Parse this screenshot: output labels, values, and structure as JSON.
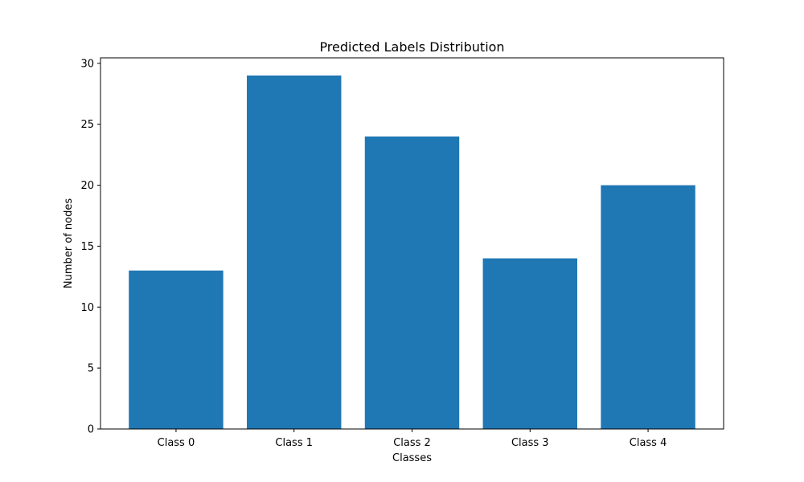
{
  "chart_data": {
    "type": "bar",
    "title": "Predicted Labels Distribution",
    "xlabel": "Classes",
    "ylabel": "Number of nodes",
    "categories": [
      "Class 0",
      "Class 1",
      "Class 2",
      "Class 3",
      "Class 4"
    ],
    "values": [
      13,
      29,
      24,
      14,
      20
    ],
    "ylim": [
      0,
      30.45
    ],
    "yticks": [
      0,
      5,
      10,
      15,
      20,
      25,
      30
    ],
    "grid": false,
    "bar_color": "#1f77b4"
  }
}
